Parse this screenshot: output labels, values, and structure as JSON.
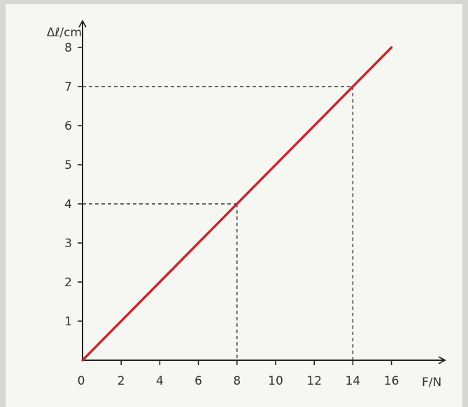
{
  "chart_data": {
    "type": "line",
    "title": "",
    "xlabel": "F/N",
    "ylabel": "Δℓ/cm",
    "xlim": [
      0,
      16
    ],
    "ylim": [
      0,
      8
    ],
    "x_ticks": [
      "0",
      "2",
      "4",
      "6",
      "8",
      "10",
      "12",
      "14",
      "16"
    ],
    "y_ticks": [
      "1",
      "2",
      "3",
      "4",
      "5",
      "6",
      "7",
      "8"
    ],
    "series": [
      {
        "x": [
          0,
          16
        ],
        "y": [
          0,
          8
        ],
        "color": "#c8282b"
      }
    ],
    "guide_points": [
      {
        "x": 8,
        "y": 4
      },
      {
        "x": 14,
        "y": 7
      }
    ],
    "grid": false,
    "colors": {
      "line": "#c8282b",
      "axis": "#222222",
      "guide": "#333333"
    }
  }
}
